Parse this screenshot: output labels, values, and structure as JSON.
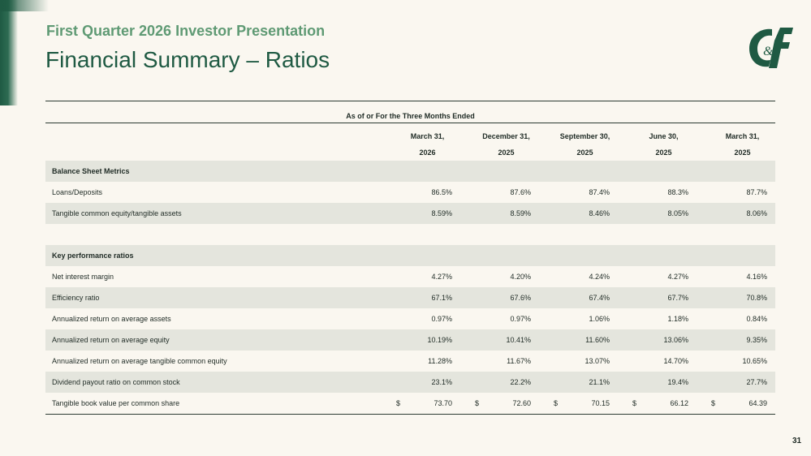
{
  "header": {
    "subtitle": "First Quarter 2026 Investor Presentation",
    "title": "Financial Summary – Ratios"
  },
  "logo": {
    "text": "C&F",
    "color": "#1f5a43"
  },
  "table": {
    "group_header": "As of or For the Three Months Ended",
    "columns": [
      {
        "line1": "March 31,",
        "line2": "2026"
      },
      {
        "line1": "December 31,",
        "line2": "2025"
      },
      {
        "line1": "September 30,",
        "line2": "2025"
      },
      {
        "line1": "June 30,",
        "line2": "2025"
      },
      {
        "line1": "March 31,",
        "line2": "2025"
      }
    ],
    "sections": [
      {
        "title": "Balance Sheet Metrics",
        "rows": [
          {
            "label": "Loans/Deposits",
            "values": [
              "86.5%",
              "87.6%",
              "87.4%",
              "88.3%",
              "87.7%"
            ]
          },
          {
            "label": "Tangible common equity/tangible assets",
            "values": [
              "8.59%",
              "8.59%",
              "8.46%",
              "8.05%",
              "8.06%"
            ]
          }
        ]
      },
      {
        "title": "Key performance ratios",
        "rows": [
          {
            "label": "Net interest margin",
            "values": [
              "4.27%",
              "4.20%",
              "4.24%",
              "4.27%",
              "4.16%"
            ]
          },
          {
            "label": "Efficiency ratio",
            "values": [
              "67.1%",
              "67.6%",
              "67.4%",
              "67.7%",
              "70.8%"
            ]
          },
          {
            "label": "Annualized return on average assets",
            "values": [
              "0.97%",
              "0.97%",
              "1.06%",
              "1.18%",
              "0.84%"
            ]
          },
          {
            "label": "Annualized return on average equity",
            "values": [
              "10.19%",
              "10.41%",
              "11.60%",
              "13.06%",
              "9.35%"
            ]
          },
          {
            "label": "Annualized return on average tangible common equity",
            "values": [
              "11.28%",
              "11.67%",
              "13.07%",
              "14.70%",
              "10.65%"
            ]
          },
          {
            "label": "Dividend payout ratio on common stock",
            "values": [
              "23.1%",
              "22.2%",
              "21.1%",
              "19.4%",
              "27.7%"
            ]
          },
          {
            "label": "Tangible book value per common share",
            "currency": "$",
            "values": [
              "73.70",
              "72.60",
              "70.15",
              "66.12",
              "64.39"
            ]
          }
        ]
      }
    ]
  },
  "footer": {
    "page_number": "31"
  }
}
